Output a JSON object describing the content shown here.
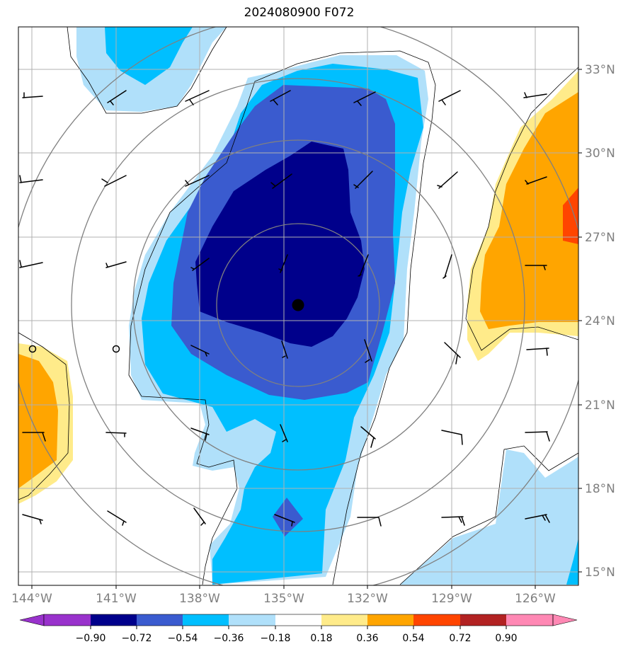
{
  "title": "2024080900 F072",
  "map": {
    "lon_labels": [
      "144°W",
      "141°W",
      "138°W",
      "135°W",
      "132°W",
      "129°W",
      "126°W"
    ],
    "lat_labels": [
      "33°N",
      "30°N",
      "27°N",
      "24°N",
      "21°N",
      "18°N",
      "15°N"
    ],
    "levels": [
      "−0.90",
      "−0.72",
      "−0.54",
      "−0.36",
      "−0.18",
      "0.18",
      "0.36",
      "0.54",
      "0.72",
      "0.90"
    ],
    "colors": {
      "lt_-0.90": "#9932cc",
      "-0.90_-0.72": "#00008b",
      "-0.72_-0.54": "#3a5bcf",
      "-0.54_-0.36": "#00bfff",
      "-0.36_-0.18": "#b0e0fa",
      "-0.18_0.18": "#ffffff",
      "0.18_0.36": "#ffeb8a",
      "0.36_0.54": "#ffa500",
      "0.54_0.72": "#ff4500",
      "0.72_0.90": "#b22222",
      "gt_0.90": "#ff88b4"
    },
    "center_marker": "filled-circle"
  }
}
